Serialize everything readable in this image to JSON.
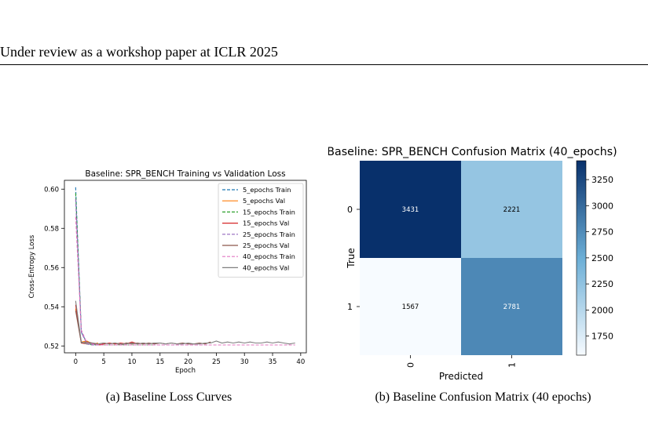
{
  "header": {
    "title": "Under review as a workshop paper at ICLR 2025"
  },
  "colors": {
    "blue": "#1f77b4",
    "orange": "#ff7f0e",
    "green": "#2ca02c",
    "red": "#d62728",
    "purple": "#9467bd",
    "brown": "#8c564b",
    "pink": "#e377c2",
    "gray": "#7f7f7f"
  },
  "captions": {
    "a": "(a)  Baseline Loss Curves",
    "b": "(b)  Baseline Confusion Matrix (40 epochs)"
  },
  "chart_data": [
    {
      "type": "line",
      "title": "Baseline: SPR_BENCH Training vs Validation Loss",
      "xlabel": "Epoch",
      "ylabel": "Cross-Entropy Loss",
      "xlim": [
        -2,
        41
      ],
      "ylim": [
        0.5165,
        0.6045
      ],
      "xticks": [
        0,
        5,
        10,
        15,
        20,
        25,
        30,
        35,
        40
      ],
      "yticks": [
        0.52,
        0.54,
        0.56,
        0.58,
        0.6
      ],
      "ytick_labels": [
        "0.52",
        "0.54",
        "0.56",
        "0.58",
        "0.60"
      ],
      "legend_position": "top-right",
      "series": [
        {
          "name": "5_epochs Train",
          "color": "#1f77b4",
          "dash": true,
          "x": [
            0,
            1,
            2,
            3,
            4
          ],
          "y": [
            0.601,
            0.527,
            0.5215,
            0.521,
            0.5205
          ]
        },
        {
          "name": "5_epochs Val",
          "color": "#ff7f0e",
          "dash": false,
          "x": [
            0,
            1,
            2,
            3,
            4
          ],
          "y": [
            0.539,
            0.522,
            0.5225,
            0.521,
            0.5215
          ]
        },
        {
          "name": "15_epochs Train",
          "color": "#2ca02c",
          "dash": true,
          "x": [
            0,
            1,
            2,
            3,
            4,
            5,
            6,
            7,
            8,
            9,
            10,
            11,
            12,
            13,
            14
          ],
          "y": [
            0.598,
            0.528,
            0.521,
            0.5205,
            0.5205,
            0.5205,
            0.5205,
            0.5205,
            0.5205,
            0.5205,
            0.5205,
            0.5205,
            0.5205,
            0.5205,
            0.5205
          ]
        },
        {
          "name": "15_epochs Val",
          "color": "#d62728",
          "dash": false,
          "x": [
            0,
            1,
            2,
            3,
            4,
            5,
            6,
            7,
            8,
            9,
            10,
            11,
            12,
            13,
            14
          ],
          "y": [
            0.541,
            0.5215,
            0.521,
            0.5215,
            0.5205,
            0.521,
            0.5215,
            0.521,
            0.5215,
            0.521,
            0.522,
            0.521,
            0.5215,
            0.521,
            0.5215
          ]
        },
        {
          "name": "25_epochs Train",
          "color": "#9467bd",
          "dash": true,
          "x": [
            0,
            1,
            2,
            3,
            4,
            5,
            6,
            7,
            8,
            9,
            10,
            11,
            12,
            13,
            14,
            15,
            16,
            17,
            18,
            19,
            20,
            21,
            22,
            23,
            24
          ],
          "y": [
            0.595,
            0.527,
            0.521,
            0.5205,
            0.5205,
            0.5205,
            0.5205,
            0.5205,
            0.5205,
            0.5205,
            0.5205,
            0.5205,
            0.5205,
            0.5205,
            0.5205,
            0.5205,
            0.5205,
            0.5205,
            0.5205,
            0.5205,
            0.5205,
            0.5205,
            0.5205,
            0.5205,
            0.5205
          ]
        },
        {
          "name": "25_epochs Val",
          "color": "#8c564b",
          "dash": false,
          "x": [
            0,
            1,
            2,
            3,
            4,
            5,
            6,
            7,
            8,
            9,
            10,
            11,
            12,
            13,
            14,
            15,
            16,
            17,
            18,
            19,
            20,
            21,
            22,
            23,
            24
          ],
          "y": [
            0.538,
            0.5215,
            0.522,
            0.5215,
            0.521,
            0.5215,
            0.521,
            0.5215,
            0.5205,
            0.5215,
            0.521,
            0.5215,
            0.521,
            0.5215,
            0.521,
            0.5215,
            0.521,
            0.5215,
            0.521,
            0.5215,
            0.521,
            0.521,
            0.5215,
            0.521,
            0.522
          ]
        },
        {
          "name": "40_epochs Train",
          "color": "#e377c2",
          "dash": true,
          "x": [
            0,
            1,
            2,
            3,
            4,
            5,
            6,
            7,
            8,
            9,
            10,
            11,
            12,
            13,
            14,
            15,
            16,
            17,
            18,
            19,
            20,
            21,
            22,
            23,
            24,
            25,
            26,
            27,
            28,
            29,
            30,
            31,
            32,
            33,
            34,
            35,
            36,
            37,
            38,
            39
          ],
          "y": [
            0.586,
            0.528,
            0.5215,
            0.521,
            0.5205,
            0.5205,
            0.5205,
            0.5205,
            0.5205,
            0.5205,
            0.5205,
            0.5205,
            0.5205,
            0.5205,
            0.5205,
            0.5205,
            0.5205,
            0.5205,
            0.5205,
            0.5205,
            0.5205,
            0.5205,
            0.5205,
            0.5205,
            0.5205,
            0.5205,
            0.5205,
            0.5205,
            0.5205,
            0.5205,
            0.5205,
            0.5205,
            0.5205,
            0.5205,
            0.5205,
            0.5205,
            0.5205,
            0.5205,
            0.5205,
            0.5205
          ]
        },
        {
          "name": "40_epochs Val",
          "color": "#7f7f7f",
          "dash": false,
          "x": [
            0,
            1,
            2,
            3,
            4,
            5,
            6,
            7,
            8,
            9,
            10,
            11,
            12,
            13,
            14,
            15,
            16,
            17,
            18,
            19,
            20,
            21,
            22,
            23,
            24,
            25,
            26,
            27,
            28,
            29,
            30,
            31,
            32,
            33,
            34,
            35,
            36,
            37,
            38,
            39
          ],
          "y": [
            0.543,
            0.522,
            0.521,
            0.5215,
            0.521,
            0.5215,
            0.521,
            0.5215,
            0.521,
            0.521,
            0.5215,
            0.521,
            0.5215,
            0.521,
            0.5215,
            0.5215,
            0.521,
            0.5215,
            0.521,
            0.521,
            0.5215,
            0.521,
            0.521,
            0.5215,
            0.5215,
            0.5225,
            0.5215,
            0.522,
            0.5215,
            0.522,
            0.5215,
            0.522,
            0.5215,
            0.5215,
            0.522,
            0.5215,
            0.522,
            0.5215,
            0.521,
            0.5215
          ]
        }
      ]
    },
    {
      "type": "heatmap",
      "title": "Baseline: SPR_BENCH Confusion Matrix (40_epochs)",
      "xlabel": "Predicted",
      "ylabel": "True",
      "row_labels": [
        "0",
        "1"
      ],
      "col_labels": [
        "0",
        "1"
      ],
      "matrix": [
        [
          3431,
          2221
        ],
        [
          1567,
          2781
        ]
      ],
      "colormap": "Blues",
      "colorbar_range": [
        1567,
        3431
      ],
      "colorbar_ticks": [
        1750,
        2000,
        2250,
        2500,
        2750,
        3000,
        3250
      ]
    }
  ]
}
